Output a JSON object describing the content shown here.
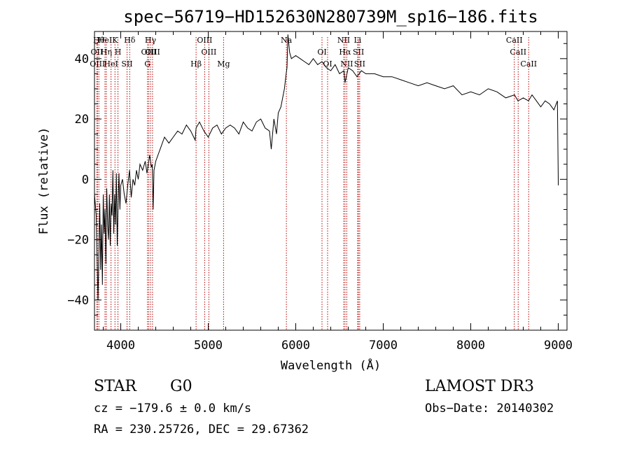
{
  "header": {
    "title": "spec−56719−HD152630N280739M_sp16−186.fits"
  },
  "info": {
    "object_class": "STAR",
    "subclass": "G0",
    "survey": "LAMOST DR3",
    "redshift": "cz = −179.6 ± 0.0 km/s",
    "obs_date": "Obs−Date: 20140302",
    "coords": "RA = 230.25726, DEC =  29.67362"
  },
  "colors": {
    "spectrum": "#000000",
    "lines": "#b40000",
    "axes": "#000000"
  },
  "chart_data": {
    "type": "line",
    "title": "spec−56719−HD152630N280739M_sp16−186.fits",
    "xlabel": "Wavelength (Å)",
    "ylabel": "Flux (relative)",
    "xlim": [
      3700,
      9100
    ],
    "ylim": [
      -50,
      49
    ],
    "xticks": [
      4000,
      5000,
      6000,
      7000,
      8000,
      9000
    ],
    "yticks": [
      -40,
      -20,
      0,
      20,
      40
    ],
    "ytick_labels": [
      "−40",
      "−20",
      "0",
      "20",
      "40"
    ],
    "series": [
      {
        "name": "spectrum",
        "x": [
          3700,
          3720,
          3740,
          3750,
          3760,
          3770,
          3780,
          3790,
          3800,
          3810,
          3820,
          3830,
          3840,
          3850,
          3860,
          3870,
          3880,
          3890,
          3900,
          3910,
          3920,
          3930,
          3940,
          3950,
          3960,
          3970,
          3980,
          3990,
          4000,
          4020,
          4040,
          4060,
          4080,
          4100,
          4120,
          4140,
          4160,
          4180,
          4200,
          4220,
          4250,
          4280,
          4300,
          4330,
          4350,
          4360,
          4370,
          4380,
          4400,
          4450,
          4500,
          4550,
          4600,
          4650,
          4700,
          4750,
          4800,
          4850,
          4861,
          4900,
          4950,
          5000,
          5050,
          5100,
          5150,
          5200,
          5250,
          5300,
          5350,
          5400,
          5450,
          5500,
          5550,
          5600,
          5650,
          5700,
          5720,
          5750,
          5780,
          5800,
          5830,
          5850,
          5870,
          5890,
          5900,
          5910,
          5930,
          5950,
          6000,
          6050,
          6100,
          6150,
          6200,
          6250,
          6300,
          6350,
          6400,
          6450,
          6500,
          6550,
          6563,
          6600,
          6650,
          6700,
          6750,
          6800,
          6900,
          7000,
          7100,
          7200,
          7300,
          7400,
          7500,
          7600,
          7700,
          7800,
          7900,
          8000,
          8100,
          8200,
          8300,
          8400,
          8500,
          8540,
          8600,
          8660,
          8700,
          8750,
          8800,
          8850,
          8900,
          8950,
          8990,
          9000,
          9000
        ],
        "y": [
          -5,
          -12,
          -40,
          -25,
          -8,
          -30,
          -15,
          -35,
          -5,
          -18,
          -10,
          -28,
          -3,
          -15,
          -20,
          -5,
          -22,
          -8,
          -12,
          3,
          -18,
          -5,
          -15,
          2,
          -22,
          -8,
          2,
          -10,
          -2,
          0,
          -5,
          -8,
          -2,
          3,
          -6,
          0,
          -2,
          3,
          0,
          5,
          3,
          6,
          2,
          8,
          4,
          5,
          -10,
          3,
          6,
          10,
          14,
          12,
          14,
          16,
          15,
          18,
          16,
          13,
          17,
          19,
          16,
          14,
          17,
          18,
          15,
          17,
          18,
          17,
          15,
          19,
          17,
          16,
          19,
          20,
          17,
          16,
          10,
          20,
          15,
          22,
          24,
          27,
          30,
          35,
          37,
          48,
          42,
          40,
          41,
          40,
          39,
          38,
          40,
          38,
          39,
          37,
          36,
          38,
          35,
          36,
          32,
          37,
          36,
          34,
          36,
          35,
          35,
          34,
          34,
          33,
          32,
          31,
          32,
          31,
          30,
          31,
          28,
          29,
          28,
          30,
          29,
          27,
          28,
          26,
          27,
          26,
          28,
          26,
          24,
          26,
          25,
          23,
          26,
          0,
          -2
        ]
      }
    ],
    "line_markers": [
      {
        "wl": 3750,
        "name": "Hθ"
      },
      {
        "wl": 3727,
        "name": "OII"
      },
      {
        "wl": 3734,
        "name": "OIII"
      },
      {
        "wl": 3820,
        "name": "HeI"
      },
      {
        "wl": 3835,
        "name": "Hη"
      },
      {
        "wl": 3889,
        "name": "HeI"
      },
      {
        "wl": 3934,
        "name": "K"
      },
      {
        "wl": 3968,
        "name": "H"
      },
      {
        "wl": 4072,
        "name": "SII"
      },
      {
        "wl": 4102,
        "name": "Hδ"
      },
      {
        "wl": 4320,
        "name": "OIII"
      },
      {
        "wl": 4305,
        "name": "G"
      },
      {
        "wl": 4340,
        "name": "Hγ"
      },
      {
        "wl": 4363,
        "name": "OIII"
      },
      {
        "wl": 4861,
        "name": "Hβ"
      },
      {
        "wl": 4959,
        "name": "OIII"
      },
      {
        "wl": 5007,
        "name": "OIII"
      },
      {
        "wl": 5175,
        "name": "Mg"
      },
      {
        "wl": 5893,
        "name": "Na"
      },
      {
        "wl": 6300,
        "name": "OI"
      },
      {
        "wl": 6364,
        "name": "OI"
      },
      {
        "wl": 6548,
        "name": "NII"
      },
      {
        "wl": 6563,
        "name": "Hα"
      },
      {
        "wl": 6583,
        "name": "NII"
      },
      {
        "wl": 6707,
        "name": "Li"
      },
      {
        "wl": 6717,
        "name": "SII"
      },
      {
        "wl": 6731,
        "name": "SII"
      },
      {
        "wl": 8498,
        "name": "CaII"
      },
      {
        "wl": 8542,
        "name": "CaII"
      },
      {
        "wl": 8662,
        "name": "CaII"
      }
    ]
  }
}
